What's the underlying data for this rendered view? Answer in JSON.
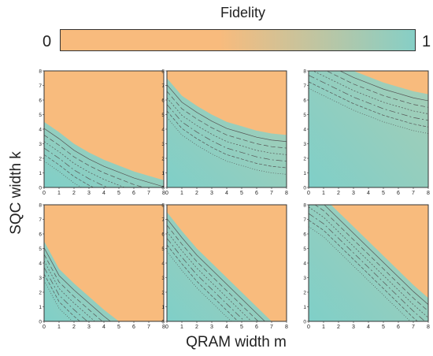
{
  "colorbar": {
    "title": "Fidelity",
    "min_label": "0",
    "max_label": "1",
    "low_color": "#f8bb7d",
    "high_color": "#86cfc6"
  },
  "axis_labels": {
    "x": "QRAM width m",
    "y": "SQC width k"
  },
  "chart_data": {
    "type": "heatmap",
    "layout": "2 rows x 3 columns of contour plots",
    "x_ticks": [
      "0",
      "1",
      "2",
      "3",
      "4",
      "5",
      "6",
      "7",
      "8"
    ],
    "y_ticks": [
      "0",
      "1",
      "2",
      "3",
      "4",
      "5",
      "6",
      "7",
      "8"
    ],
    "xlim": [
      0,
      8
    ],
    "ylim": [
      0,
      8
    ],
    "xlabel": "QRAM width m",
    "ylabel": "SQC width k",
    "colorbar": {
      "label": "Fidelity",
      "range": [
        0,
        1
      ]
    },
    "panels": [
      {
        "row": 1,
        "col": 1,
        "contour_offsets": [
          1,
          2,
          3,
          4,
          5,
          6
        ],
        "frontier_k_at_m": [
          [
            0,
            4.5
          ],
          [
            1,
            3.8
          ],
          [
            2,
            3.0
          ],
          [
            3,
            2.4
          ],
          [
            4,
            1.9
          ],
          [
            5,
            1.5
          ],
          [
            6,
            1.1
          ],
          [
            7,
            0.8
          ],
          [
            8,
            0.5
          ]
        ]
      },
      {
        "row": 1,
        "col": 2,
        "contour_offsets": [
          1,
          2,
          3,
          4,
          5,
          6
        ],
        "frontier_k_at_m": [
          [
            0,
            7.5
          ],
          [
            1,
            6.3
          ],
          [
            2,
            5.6
          ],
          [
            3,
            5.0
          ],
          [
            4,
            4.5
          ],
          [
            5,
            4.2
          ],
          [
            6,
            3.9
          ],
          [
            7,
            3.7
          ],
          [
            8,
            3.6
          ]
        ]
      },
      {
        "row": 1,
        "col": 3,
        "contour_offsets": [
          1,
          2,
          3,
          4,
          5,
          6
        ],
        "frontier_k_at_m": [
          [
            0,
            9.5
          ],
          [
            1,
            9.0
          ],
          [
            2,
            8.5
          ],
          [
            3,
            8.0
          ],
          [
            4,
            7.6
          ],
          [
            5,
            7.2
          ],
          [
            6,
            6.9
          ],
          [
            7,
            6.6
          ],
          [
            8,
            6.4
          ]
        ]
      },
      {
        "row": 2,
        "col": 1,
        "contour_offsets": [
          1,
          2,
          3,
          4,
          5,
          6
        ],
        "frontier_k_at_m": [
          [
            0,
            5.5
          ],
          [
            1,
            3.6
          ],
          [
            2,
            2.6
          ],
          [
            3,
            1.7
          ],
          [
            4,
            0.8
          ],
          [
            5,
            0.0
          ]
        ]
      },
      {
        "row": 2,
        "col": 2,
        "contour_offsets": [
          1,
          2,
          3,
          4,
          5,
          6
        ],
        "frontier_k_at_m": [
          [
            0,
            7.5
          ],
          [
            1,
            6.2
          ],
          [
            2,
            5.0
          ],
          [
            3,
            4.0
          ],
          [
            4,
            3.0
          ],
          [
            5,
            2.0
          ],
          [
            6,
            1.0
          ],
          [
            7,
            0.0
          ]
        ]
      },
      {
        "row": 2,
        "col": 3,
        "contour_offsets": [
          1,
          2,
          3,
          4,
          5,
          6
        ],
        "frontier_k_at_m": [
          [
            0,
            9.2
          ],
          [
            1,
            8.5
          ],
          [
            2,
            7.5
          ],
          [
            3,
            6.5
          ],
          [
            4,
            5.5
          ],
          [
            5,
            4.5
          ],
          [
            6,
            3.5
          ],
          [
            7,
            2.5
          ],
          [
            8,
            1.6
          ]
        ]
      }
    ]
  }
}
